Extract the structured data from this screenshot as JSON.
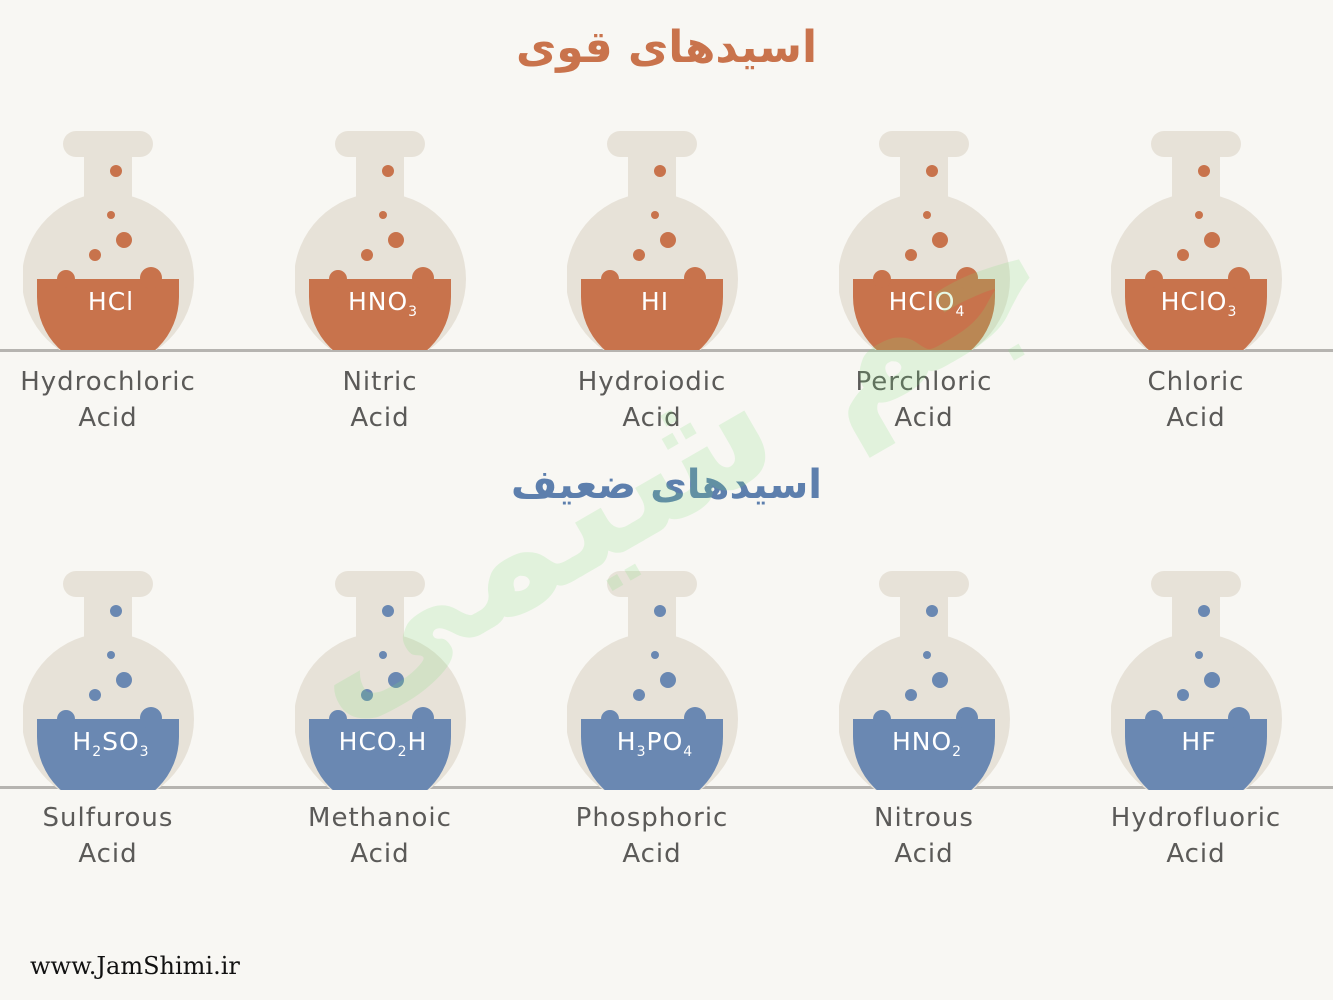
{
  "titles": {
    "strong": "اسیدهای قوی",
    "weak": "اسیدهای ضعیف"
  },
  "colors": {
    "strong_liquid": "#c8734c",
    "weak_liquid": "#6a88b2",
    "flask_body": "#e7e2d8",
    "background": "#f8f7f3"
  },
  "strong_acids": [
    {
      "formula": [
        "HCl"
      ],
      "line1": "Hydrochloric",
      "line2": "Acid"
    },
    {
      "formula": [
        "HNO",
        "3"
      ],
      "line1": "Nitric",
      "line2": "Acid"
    },
    {
      "formula": [
        "HI"
      ],
      "line1": "Hydroiodic",
      "line2": "Acid"
    },
    {
      "formula": [
        "HClO",
        "4"
      ],
      "line1": "Perchloric",
      "line2": "Acid"
    },
    {
      "formula": [
        "HClO",
        "3"
      ],
      "line1": "Chloric",
      "line2": "Acid"
    }
  ],
  "weak_acids": [
    {
      "formula": [
        "H",
        "2",
        "SO",
        "3"
      ],
      "line1": "Sulfurous",
      "line2": "Acid"
    },
    {
      "formula": [
        "HCO",
        "2",
        "H"
      ],
      "line1": "Methanoic",
      "line2": "Acid"
    },
    {
      "formula": [
        "H",
        "3",
        "PO",
        "4"
      ],
      "line1": "Phosphoric",
      "line2": "Acid"
    },
    {
      "formula": [
        "HNO",
        "2"
      ],
      "line1": "Nitrous",
      "line2": "Acid"
    },
    {
      "formula": [
        "HF"
      ],
      "line1": "Hydrofluoric",
      "line2": "Acid"
    }
  ],
  "watermark": "جم شیمی",
  "footer": {
    "url": "www.JamShimi.ir"
  }
}
